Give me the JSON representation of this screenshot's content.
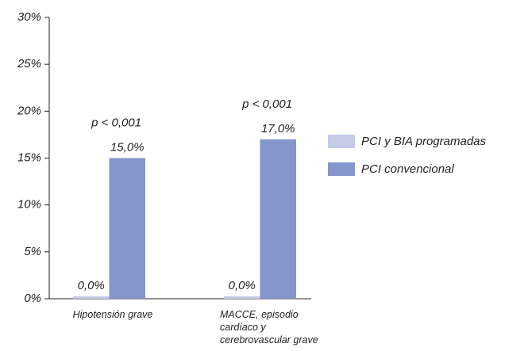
{
  "chart_data": {
    "type": "bar",
    "categories": [
      "Hipotensión grave",
      "MACCE, episodio cardíaco y cerebrovascular grave"
    ],
    "series": [
      {
        "name": "PCI y BIA programadas",
        "color": "#c5cbe8",
        "values": [
          0,
          0
        ],
        "value_labels": [
          "0,0%",
          "0,0%"
        ]
      },
      {
        "name": "PCI convencional",
        "color": "#8496cc",
        "values": [
          15,
          17
        ],
        "value_labels": [
          "15,0%",
          "17,0%"
        ]
      }
    ],
    "annotations": [
      "p < 0,001",
      "p < 0,001"
    ],
    "ylim": [
      0,
      30
    ],
    "yticks": [
      {
        "value": 0,
        "label": "0%"
      },
      {
        "value": 5,
        "label": "5%"
      },
      {
        "value": 10,
        "label": "10%"
      },
      {
        "value": 15,
        "label": "15%"
      },
      {
        "value": 20,
        "label": "20%"
      },
      {
        "value": 25,
        "label": "25%"
      },
      {
        "value": 30,
        "label": "30%"
      }
    ],
    "legend": "right"
  }
}
